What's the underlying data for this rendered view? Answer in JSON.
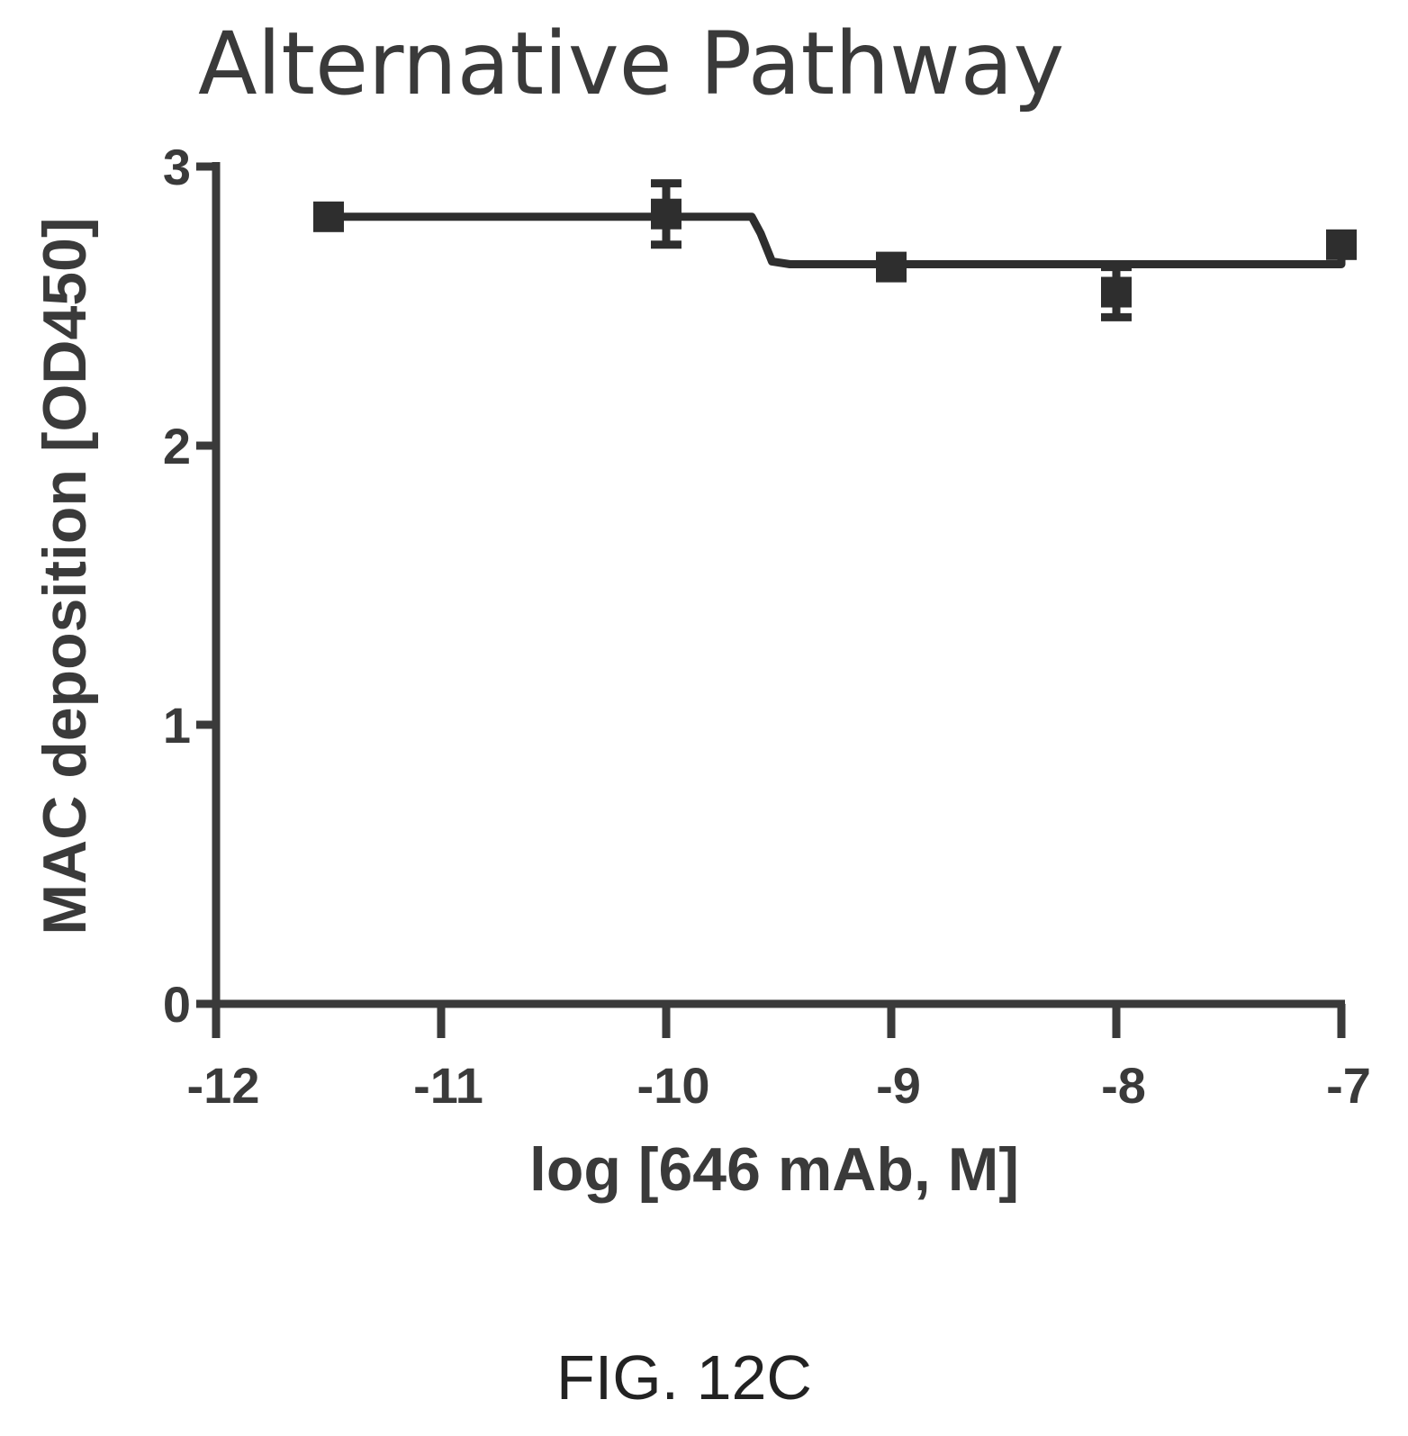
{
  "chart_data": {
    "type": "line",
    "title": "Alternative Pathway",
    "xlabel": "log [646 mAb, M]",
    "ylabel": "MAC deposition [OD450]",
    "xlim": [
      -12,
      -7
    ],
    "ylim": [
      0,
      3
    ],
    "xticks": [
      -12,
      -11,
      -10,
      -9,
      -8,
      -7
    ],
    "yticks": [
      0,
      1,
      2,
      3
    ],
    "x_tick_labels": [
      "-12",
      "-11",
      "-10",
      "-9",
      "-8",
      "-7"
    ],
    "y_tick_labels": [
      "0",
      "1",
      "2",
      "3"
    ],
    "series": [
      {
        "points": [
          {
            "x": -11.5,
            "y": 2.82,
            "err": 0
          },
          {
            "x": -10,
            "y": 2.83,
            "err": 0.11
          },
          {
            "x": -9,
            "y": 2.64,
            "err": 0
          },
          {
            "x": -8,
            "y": 2.55,
            "err": 0.09
          },
          {
            "x": -7,
            "y": 2.72,
            "err": 0
          }
        ],
        "fit": [
          [
            -11.5,
            2.82
          ],
          [
            -10,
            2.82
          ],
          [
            -9.62,
            2.82
          ],
          [
            -9.58,
            2.76
          ],
          [
            -9.53,
            2.66
          ],
          [
            -9.45,
            2.65
          ],
          [
            -7,
            2.65
          ],
          [
            -7,
            2.72
          ]
        ]
      }
    ],
    "grid": false,
    "legend": "none",
    "colors": {
      "line": "#2e2e2e",
      "marker": "#2e2e2e",
      "axis": "#3a3a3a"
    }
  },
  "caption": "FIG. 12C"
}
